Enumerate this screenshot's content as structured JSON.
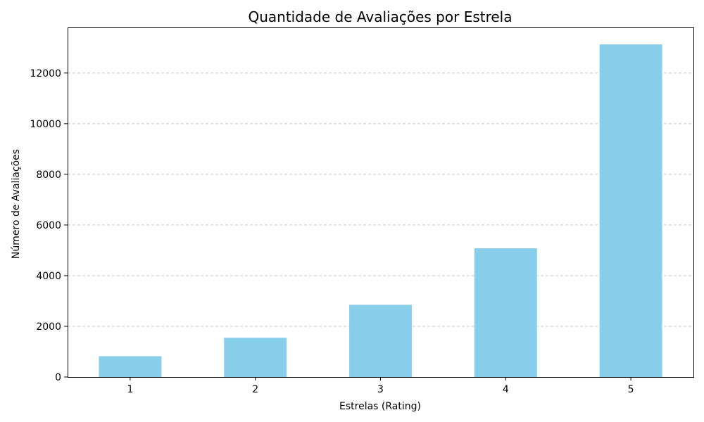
{
  "chart_data": {
    "type": "bar",
    "title": "Quantidade de Avaliações por Estrela",
    "xlabel": "Estrelas (Rating)",
    "ylabel": "Número de Avaliações",
    "categories": [
      "1",
      "2",
      "3",
      "4",
      "5"
    ],
    "values": [
      820,
      1550,
      2850,
      5080,
      13130
    ],
    "ylim": [
      0,
      13800
    ],
    "yticks": [
      0,
      2000,
      4000,
      6000,
      8000,
      10000,
      12000
    ],
    "yticks_labels": [
      "0",
      "2000",
      "4000",
      "6000",
      "8000",
      "10000",
      "12000"
    ],
    "grid": "y",
    "bar_color": "#87ceeb"
  }
}
